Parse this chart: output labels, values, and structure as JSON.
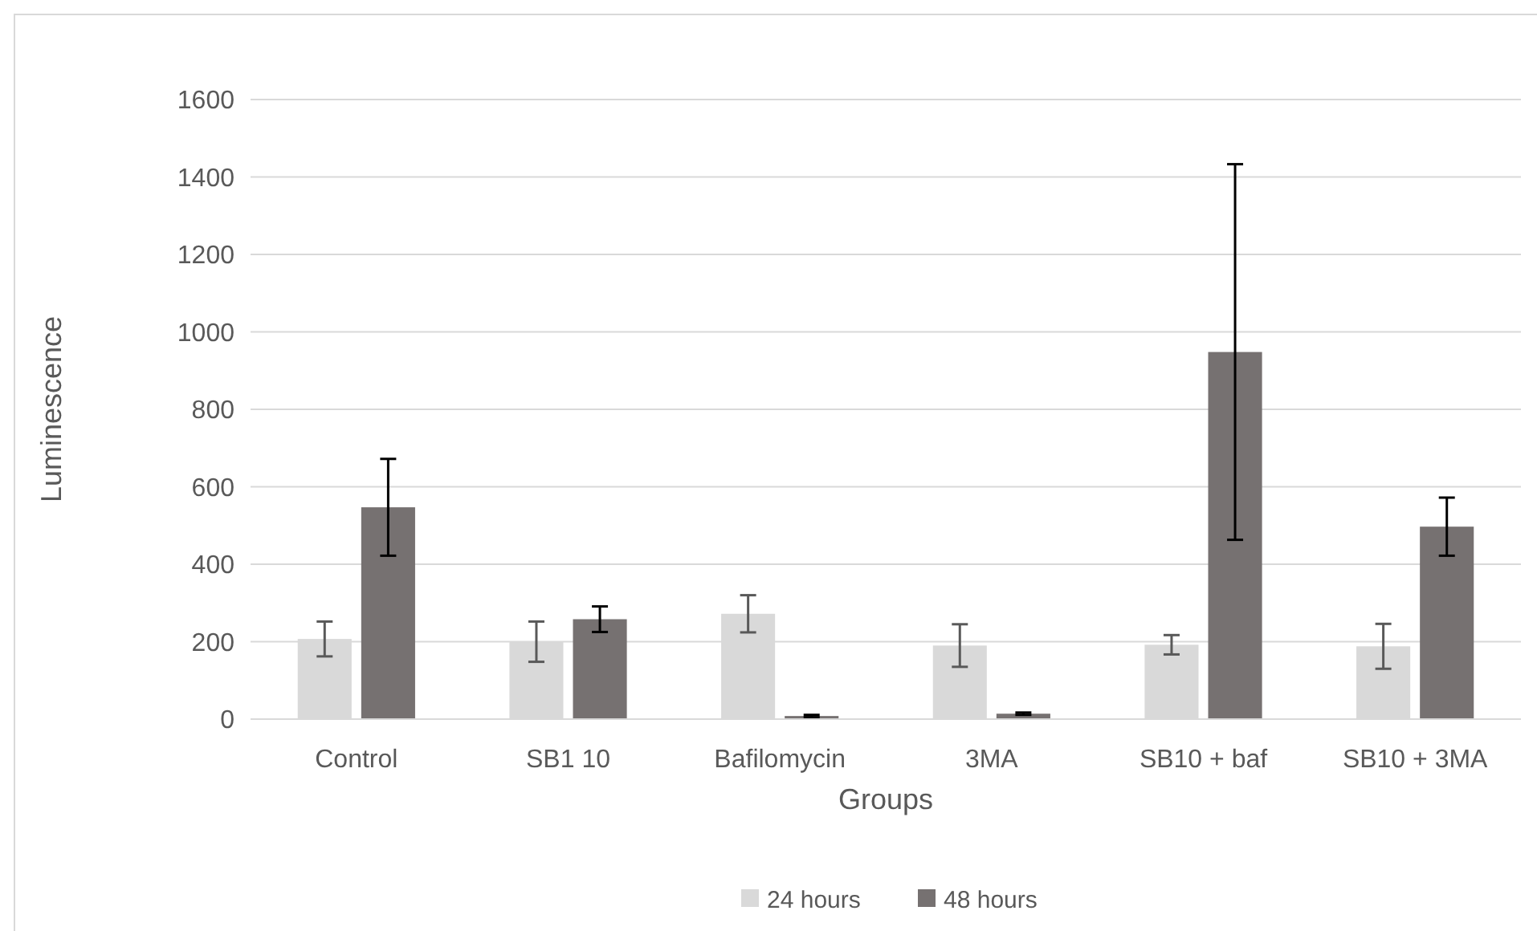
{
  "chart_data": {
    "type": "bar",
    "xlabel": "Groups",
    "ylabel": "Luminescence",
    "categories": [
      "Control",
      "SB1 10",
      "Bafilomycin",
      "3MA",
      "SB10 + baf",
      "SB10 + 3MA"
    ],
    "series": [
      {
        "name": "24 hours",
        "color": "#d9d9d9",
        "values": [
          207,
          200,
          272,
          190,
          192,
          188
        ],
        "errors": [
          45,
          52,
          48,
          55,
          25,
          58
        ]
      },
      {
        "name": "48 hours",
        "color": "#767171",
        "values": [
          547,
          258,
          8,
          14,
          948,
          497
        ],
        "errors": [
          125,
          33,
          3,
          3,
          485,
          75
        ]
      }
    ],
    "ylim": [
      0,
      1600
    ],
    "yticks": [
      0,
      200,
      400,
      600,
      800,
      1000,
      1200,
      1400,
      1600
    ],
    "grid": "y",
    "legend": "bottom"
  }
}
